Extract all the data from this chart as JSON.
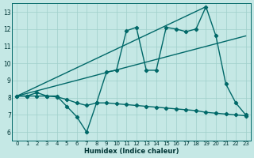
{
  "xlabel": "Humidex (Indice chaleur)",
  "xlim": [
    -0.5,
    23.5
  ],
  "ylim": [
    5.5,
    13.5
  ],
  "xticks": [
    0,
    1,
    2,
    3,
    4,
    5,
    6,
    7,
    8,
    9,
    10,
    11,
    12,
    13,
    14,
    15,
    16,
    17,
    18,
    19,
    20,
    21,
    22,
    23
  ],
  "yticks": [
    6,
    7,
    8,
    9,
    10,
    11,
    12,
    13
  ],
  "bg_color": "#c5e8e5",
  "grid_color": "#9fcfca",
  "line_color": "#006868",
  "series_zigzag": {
    "x": [
      0,
      1,
      2,
      3,
      4,
      5,
      6,
      7,
      8,
      9,
      10,
      11,
      12,
      13,
      14,
      15,
      16,
      17,
      18,
      19,
      20,
      21,
      22,
      23
    ],
    "y": [
      8.1,
      8.1,
      8.3,
      8.1,
      8.1,
      7.5,
      6.9,
      6.0,
      7.7,
      9.5,
      9.6,
      11.9,
      12.1,
      9.6,
      9.6,
      12.1,
      12.0,
      11.85,
      12.0,
      13.3,
      11.6,
      8.8,
      7.7,
      7.0
    ]
  },
  "series_diagonal": {
    "x": [
      0,
      19
    ],
    "y": [
      8.1,
      13.3
    ]
  },
  "series_trend": {
    "x": [
      0,
      23
    ],
    "y": [
      8.1,
      11.6
    ]
  },
  "series_declining": {
    "x": [
      0,
      1,
      2,
      3,
      4,
      5,
      6,
      7,
      8,
      9,
      10,
      11,
      12,
      13,
      14,
      15,
      16,
      17,
      18,
      19,
      20,
      21,
      22,
      23
    ],
    "y": [
      8.1,
      8.1,
      8.1,
      8.1,
      8.05,
      7.9,
      7.7,
      7.55,
      7.7,
      7.7,
      7.65,
      7.6,
      7.55,
      7.5,
      7.45,
      7.4,
      7.35,
      7.3,
      7.25,
      7.15,
      7.1,
      7.05,
      7.0,
      6.95
    ]
  },
  "linewidth": 1.0,
  "markersize": 2.2
}
